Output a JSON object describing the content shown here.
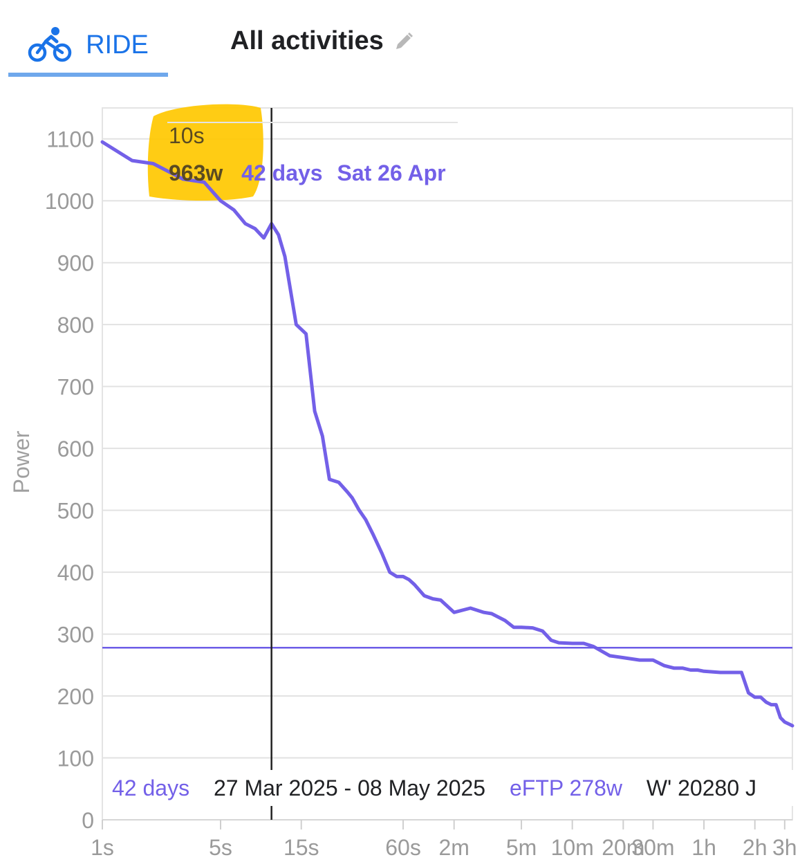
{
  "tabs": {
    "ride_label": "RIDE",
    "ride_icon": "bike-icon",
    "activities_label": "All activities",
    "edit_icon": "pencil-icon"
  },
  "colors": {
    "accent": "#1a73e8",
    "series": "#7360e8",
    "highlight": "#ffc800",
    "grid": "#e4e4e4",
    "axis_text": "#9a9a9a"
  },
  "tooltip": {
    "duration": "10s",
    "power": "963w",
    "period": "42 days",
    "date": "Sat 26 Apr"
  },
  "footer": {
    "period": "42 days",
    "range": "27 Mar 2025 - 08 May 2025",
    "eftp": "eFTP 278w",
    "wprime": "W' 20280 J"
  },
  "chart_data": {
    "type": "line",
    "xlabel": "",
    "ylabel": "Power",
    "x_scale": "log",
    "x_unit": "seconds",
    "xlim": [
      1,
      12000
    ],
    "ylim": [
      0,
      1150
    ],
    "grid": true,
    "y_ticks": [
      0,
      100,
      200,
      300,
      400,
      500,
      600,
      700,
      800,
      900,
      1000,
      1100
    ],
    "x_ticks": [
      {
        "label": "1s",
        "value": 1
      },
      {
        "label": "5s",
        "value": 5
      },
      {
        "label": "15s",
        "value": 15
      },
      {
        "label": "60s",
        "value": 60
      },
      {
        "label": "2m",
        "value": 120
      },
      {
        "label": "5m",
        "value": 300
      },
      {
        "label": "10m",
        "value": 600
      },
      {
        "label": "20m",
        "value": 1200
      },
      {
        "label": "30m",
        "value": 1800
      },
      {
        "label": "1h",
        "value": 3600
      },
      {
        "label": "2h",
        "value": 7200
      },
      {
        "label": "3h",
        "value": 10800
      }
    ],
    "eftp_line": 278,
    "cursor_x": 10,
    "series": [
      {
        "name": "42 days",
        "x": [
          1,
          1.5,
          2,
          3,
          4,
          5,
          6,
          7,
          8,
          9,
          10,
          11,
          12,
          14,
          16,
          18,
          20,
          22,
          25,
          28,
          30,
          33,
          36,
          40,
          45,
          50,
          55,
          60,
          65,
          70,
          80,
          90,
          100,
          120,
          150,
          180,
          200,
          240,
          270,
          300,
          350,
          400,
          450,
          500,
          600,
          700,
          800,
          1000,
          1200,
          1500,
          1800,
          2100,
          2400,
          2700,
          3000,
          3300,
          3600,
          4500,
          5400,
          6000,
          6600,
          7200,
          7800,
          8400,
          9000,
          9600,
          10200,
          10800,
          12000
        ],
        "values": [
          1095,
          1065,
          1060,
          1035,
          1030,
          1000,
          985,
          963,
          955,
          940,
          963,
          945,
          910,
          800,
          785,
          660,
          620,
          550,
          545,
          530,
          520,
          500,
          485,
          460,
          430,
          400,
          393,
          393,
          388,
          380,
          362,
          357,
          355,
          335,
          342,
          335,
          333,
          322,
          311,
          311,
          310,
          305,
          290,
          286,
          285,
          285,
          280,
          265,
          262,
          258,
          258,
          249,
          245,
          245,
          242,
          242,
          240,
          238,
          238,
          238,
          205,
          198,
          198,
          190,
          186,
          186,
          165,
          158,
          152
        ]
      }
    ]
  }
}
